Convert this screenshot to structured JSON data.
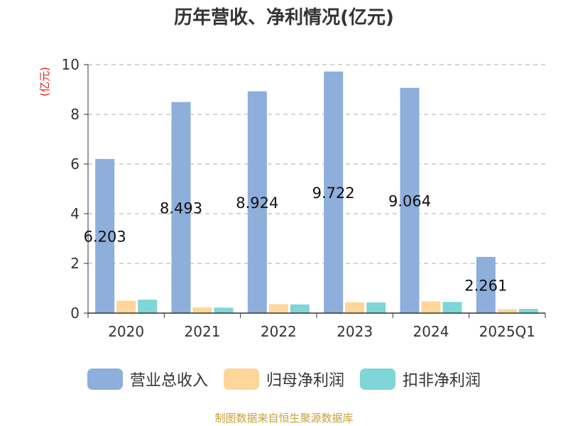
{
  "title": "历年营收、净利情况(亿元)",
  "source": "制图数据来自恒生聚源数据库",
  "colors": {
    "revenue": "#8eaedb",
    "net_profit": "#fdd699",
    "net_profit_excl": "#7fd6d6",
    "unit_label": "#e0201b",
    "grid": "#aaaaaa",
    "source": "#c8a03a"
  },
  "chart_data": {
    "type": "bar",
    "title": "历年营收、净利情况(亿元)",
    "ylabel": "(亿元)",
    "ylim": [
      0,
      10
    ],
    "yticks": [
      "0",
      "2",
      "4",
      "6",
      "8",
      "10"
    ],
    "categories": [
      "2020",
      "2021",
      "2022",
      "2023",
      "2024",
      "2025Q1"
    ],
    "series": [
      {
        "name": "营业总收入",
        "values": [
          6.203,
          8.493,
          8.924,
          9.722,
          9.064,
          2.261
        ],
        "labels": [
          "6.203",
          "8.493",
          "8.924",
          "9.722",
          "9.064",
          "2.261"
        ]
      },
      {
        "name": "归母净利润",
        "values": [
          0.5,
          0.23,
          0.36,
          0.44,
          0.47,
          0.16
        ]
      },
      {
        "name": "扣非净利润",
        "values": [
          0.54,
          0.22,
          0.35,
          0.43,
          0.45,
          0.17
        ]
      }
    ],
    "grid": true,
    "legend_position": "bottom"
  }
}
